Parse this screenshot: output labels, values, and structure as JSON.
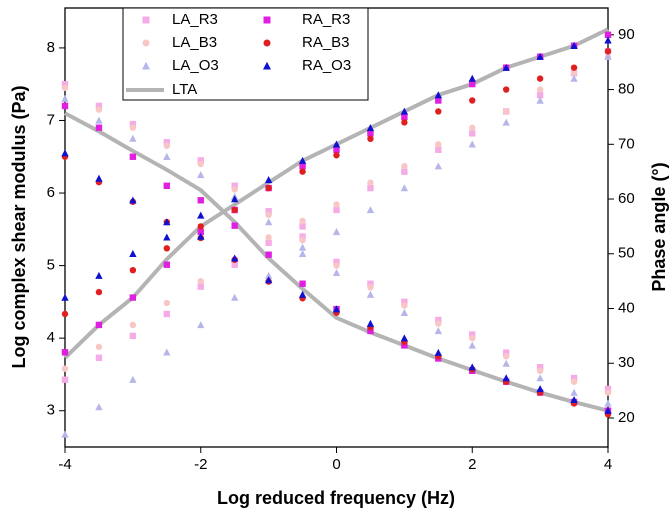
{
  "chart_data": {
    "type": "scatter",
    "x_label": "Log reduced frequency (Hz)",
    "y_label": "Log complex shear modulus (Pa)",
    "y2_label": "Phase angle (°)",
    "x": [
      -4,
      -3.5,
      -3,
      -2.5,
      -2,
      -1.5,
      -1,
      -0.5,
      0,
      0.5,
      1,
      1.5,
      2,
      2.5,
      3,
      3.5,
      4
    ],
    "xlim": [
      -4,
      4
    ],
    "xticks": [
      -4,
      -2,
      0,
      2,
      4
    ],
    "ylim": [
      2.5,
      8.55
    ],
    "yticks": [
      3,
      4,
      5,
      6,
      7,
      8
    ],
    "y2lim": [
      14.7,
      94.9
    ],
    "y2ticks": [
      20,
      30,
      40,
      50,
      60,
      70,
      80,
      90
    ],
    "series": [
      {
        "name": "LA_R3",
        "color": "#f5ace6",
        "marker": "square",
        "y": [
          7.5,
          7.2,
          6.95,
          6.7,
          6.45,
          6.1,
          5.75,
          5.4,
          5.05,
          4.75,
          4.5,
          4.25,
          4.05,
          3.8,
          3.6,
          3.45,
          3.3
        ],
        "y2": [
          27,
          31,
          35,
          39,
          44,
          48,
          52,
          55,
          58,
          62,
          65,
          69,
          72,
          76,
          79,
          83,
          87
        ]
      },
      {
        "name": "LA_B3",
        "color": "#f9c6c6",
        "marker": "circle",
        "y": [
          7.45,
          7.15,
          6.9,
          6.65,
          6.4,
          6.05,
          5.7,
          5.35,
          5.0,
          4.7,
          4.45,
          4.2,
          4.0,
          3.75,
          3.55,
          3.4,
          3.25
        ],
        "y2": [
          29,
          33,
          37,
          41,
          45,
          49,
          53,
          56,
          59,
          63,
          66,
          70,
          73,
          76,
          80,
          83,
          86
        ]
      },
      {
        "name": "LA_O3",
        "color": "#b6b6ea",
        "marker": "triangle",
        "y": [
          7.3,
          7.0,
          6.75,
          6.5,
          6.25,
          5.95,
          5.6,
          5.25,
          4.9,
          4.6,
          4.35,
          4.1,
          3.9,
          3.65,
          3.45,
          3.25,
          3.1
        ],
        "y2": [
          17,
          22,
          27,
          32,
          37,
          42,
          46,
          50,
          54,
          58,
          62,
          66,
          70,
          74,
          78,
          82,
          86
        ]
      },
      {
        "name": "RA_R3",
        "color": "#e020e0",
        "marker": "square",
        "y": [
          7.2,
          6.9,
          6.5,
          6.1,
          5.9,
          5.55,
          5.15,
          4.75,
          4.4,
          4.1,
          3.9,
          3.72,
          3.55,
          3.4,
          3.25,
          3.12,
          3.0
        ],
        "y2": [
          32,
          37,
          42,
          48,
          54,
          58,
          62,
          66,
          69,
          72,
          75,
          78,
          81,
          84,
          86,
          88,
          90
        ]
      },
      {
        "name": "RA_B3",
        "color": "#e02020",
        "marker": "circle",
        "y": [
          6.5,
          6.15,
          5.88,
          5.6,
          5.38,
          5.08,
          4.78,
          4.55,
          4.35,
          4.15,
          3.95,
          3.75,
          3.57,
          3.4,
          3.25,
          3.1,
          2.95
        ],
        "y2": [
          39,
          43,
          47,
          51,
          55,
          58,
          62,
          65,
          68,
          71,
          74,
          76,
          78,
          80,
          82,
          84,
          87
        ]
      },
      {
        "name": "RA_O3",
        "color": "#1010d0",
        "marker": "triangle",
        "y": [
          6.55,
          6.2,
          5.9,
          5.6,
          5.4,
          5.1,
          4.8,
          4.6,
          4.4,
          4.2,
          4.0,
          3.8,
          3.6,
          3.45,
          3.3,
          3.15,
          3.0
        ],
        "y2": [
          42,
          46,
          50,
          53,
          57,
          60,
          63.5,
          67,
          70,
          73,
          76,
          79,
          82,
          84,
          86,
          88,
          89
        ]
      },
      {
        "name": "LTA",
        "color": "#b4b4b4",
        "marker": "line",
        "y": [
          7.1,
          6.85,
          6.58,
          6.32,
          6.04,
          5.6,
          5.1,
          4.68,
          4.28,
          4.08,
          3.9,
          3.72,
          3.56,
          3.4,
          3.25,
          3.12,
          3.0
        ],
        "y2": [
          31,
          37,
          42,
          49,
          55,
          59,
          63,
          67,
          70,
          73,
          76,
          79,
          81,
          84,
          86,
          88,
          91
        ]
      }
    ]
  }
}
